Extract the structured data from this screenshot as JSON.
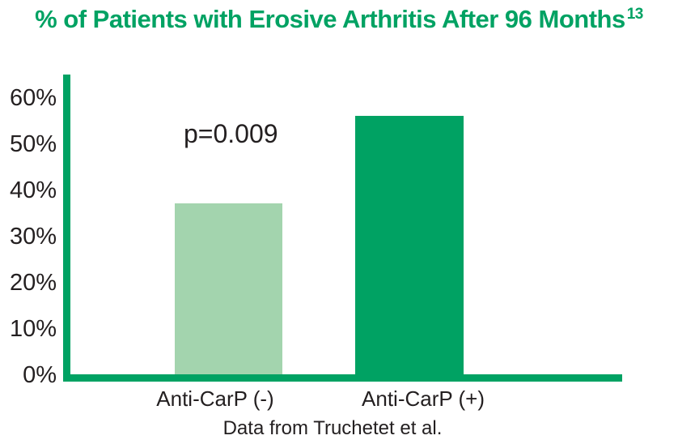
{
  "title": {
    "text": "% of Patients with Erosive Arthritis After 96 Months",
    "superscript": "13"
  },
  "annotation": {
    "p_value": "p=0.009"
  },
  "y_axis": {
    "tick_labels": [
      "60%",
      "50%",
      "40%",
      "30%",
      "20%",
      "10%",
      "0%"
    ]
  },
  "caption": "Data from Truchetet et al.",
  "colors": {
    "title_green": "#00A263",
    "axis_green": "#00A263",
    "bar_negative_light_green": "#A3D4AE",
    "bar_positive_dark_green": "#00A263",
    "text_dark": "#231F20",
    "background": "#FFFFFF"
  },
  "chart_data": {
    "type": "bar",
    "title": "% of Patients with Erosive Arthritis After 96 Months",
    "title_superscript_reference": "13",
    "categories": [
      "Anti-CarP (-)",
      "Anti-CarP (+)"
    ],
    "values": [
      37,
      56
    ],
    "value_unit": "percent",
    "xlabel": "",
    "ylabel": "",
    "ylim": [
      0,
      65
    ],
    "yticks": [
      0,
      10,
      20,
      30,
      40,
      50,
      60
    ],
    "ytick_format": "{value}%",
    "grid": false,
    "legend": "none",
    "annotation": "p=0.009",
    "annotation_position": "above Anti-CarP (-) bar",
    "caption": "Data from Truchetet et al.",
    "bar_colors": [
      "#A3D4AE",
      "#00A263"
    ]
  }
}
